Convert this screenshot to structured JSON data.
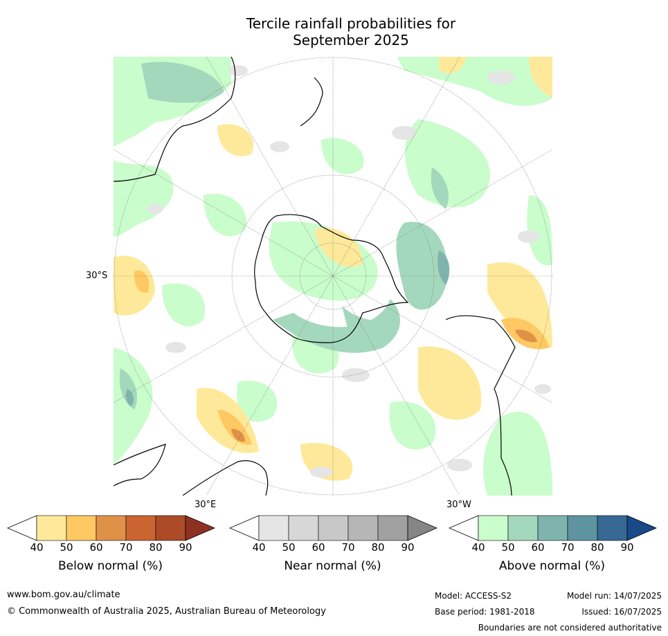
{
  "title_line1": "Tercile rainfall probabilities for",
  "title_line2": "September 2025",
  "map": {
    "lat_label": "30°S",
    "lon_label_east": "30°E",
    "lon_label_west": "30°W"
  },
  "colorbars": [
    {
      "name": "below",
      "label": "Below normal (%)",
      "ticks": [
        "40",
        "50",
        "60",
        "70",
        "80",
        "90"
      ],
      "colors": [
        "#ffffff",
        "#fee99a",
        "#fec862",
        "#df9147",
        "#ca6531",
        "#ad4b29",
        "#8e3121"
      ]
    },
    {
      "name": "near",
      "label": "Near normal (%)",
      "ticks": [
        "40",
        "50",
        "60",
        "70",
        "80",
        "90"
      ],
      "colors": [
        "#ffffff",
        "#e5e5e5",
        "#d7d7d7",
        "#c8c8c8",
        "#b6b6b6",
        "#a1a1a1",
        "#858585"
      ]
    },
    {
      "name": "above",
      "label": "Above normal (%)",
      "ticks": [
        "40",
        "50",
        "60",
        "70",
        "80",
        "90"
      ],
      "colors": [
        "#ffffff",
        "#c9fdcb",
        "#a4d8bc",
        "#7fb4ae",
        "#5d94a0",
        "#386894",
        "#174a86"
      ]
    }
  ],
  "footer": {
    "url": "www.bom.gov.au/climate",
    "copyright": "© Commonwealth of Australia 2025, Australian Bureau of Meteorology",
    "model": "Model: ACCESS-S2",
    "base_period": "Base period: 1981-2018",
    "model_run": "Model run: 14/07/2025",
    "issued": "Issued: 16/07/2025",
    "disclaimer": "Boundaries are not considered authoritative"
  }
}
